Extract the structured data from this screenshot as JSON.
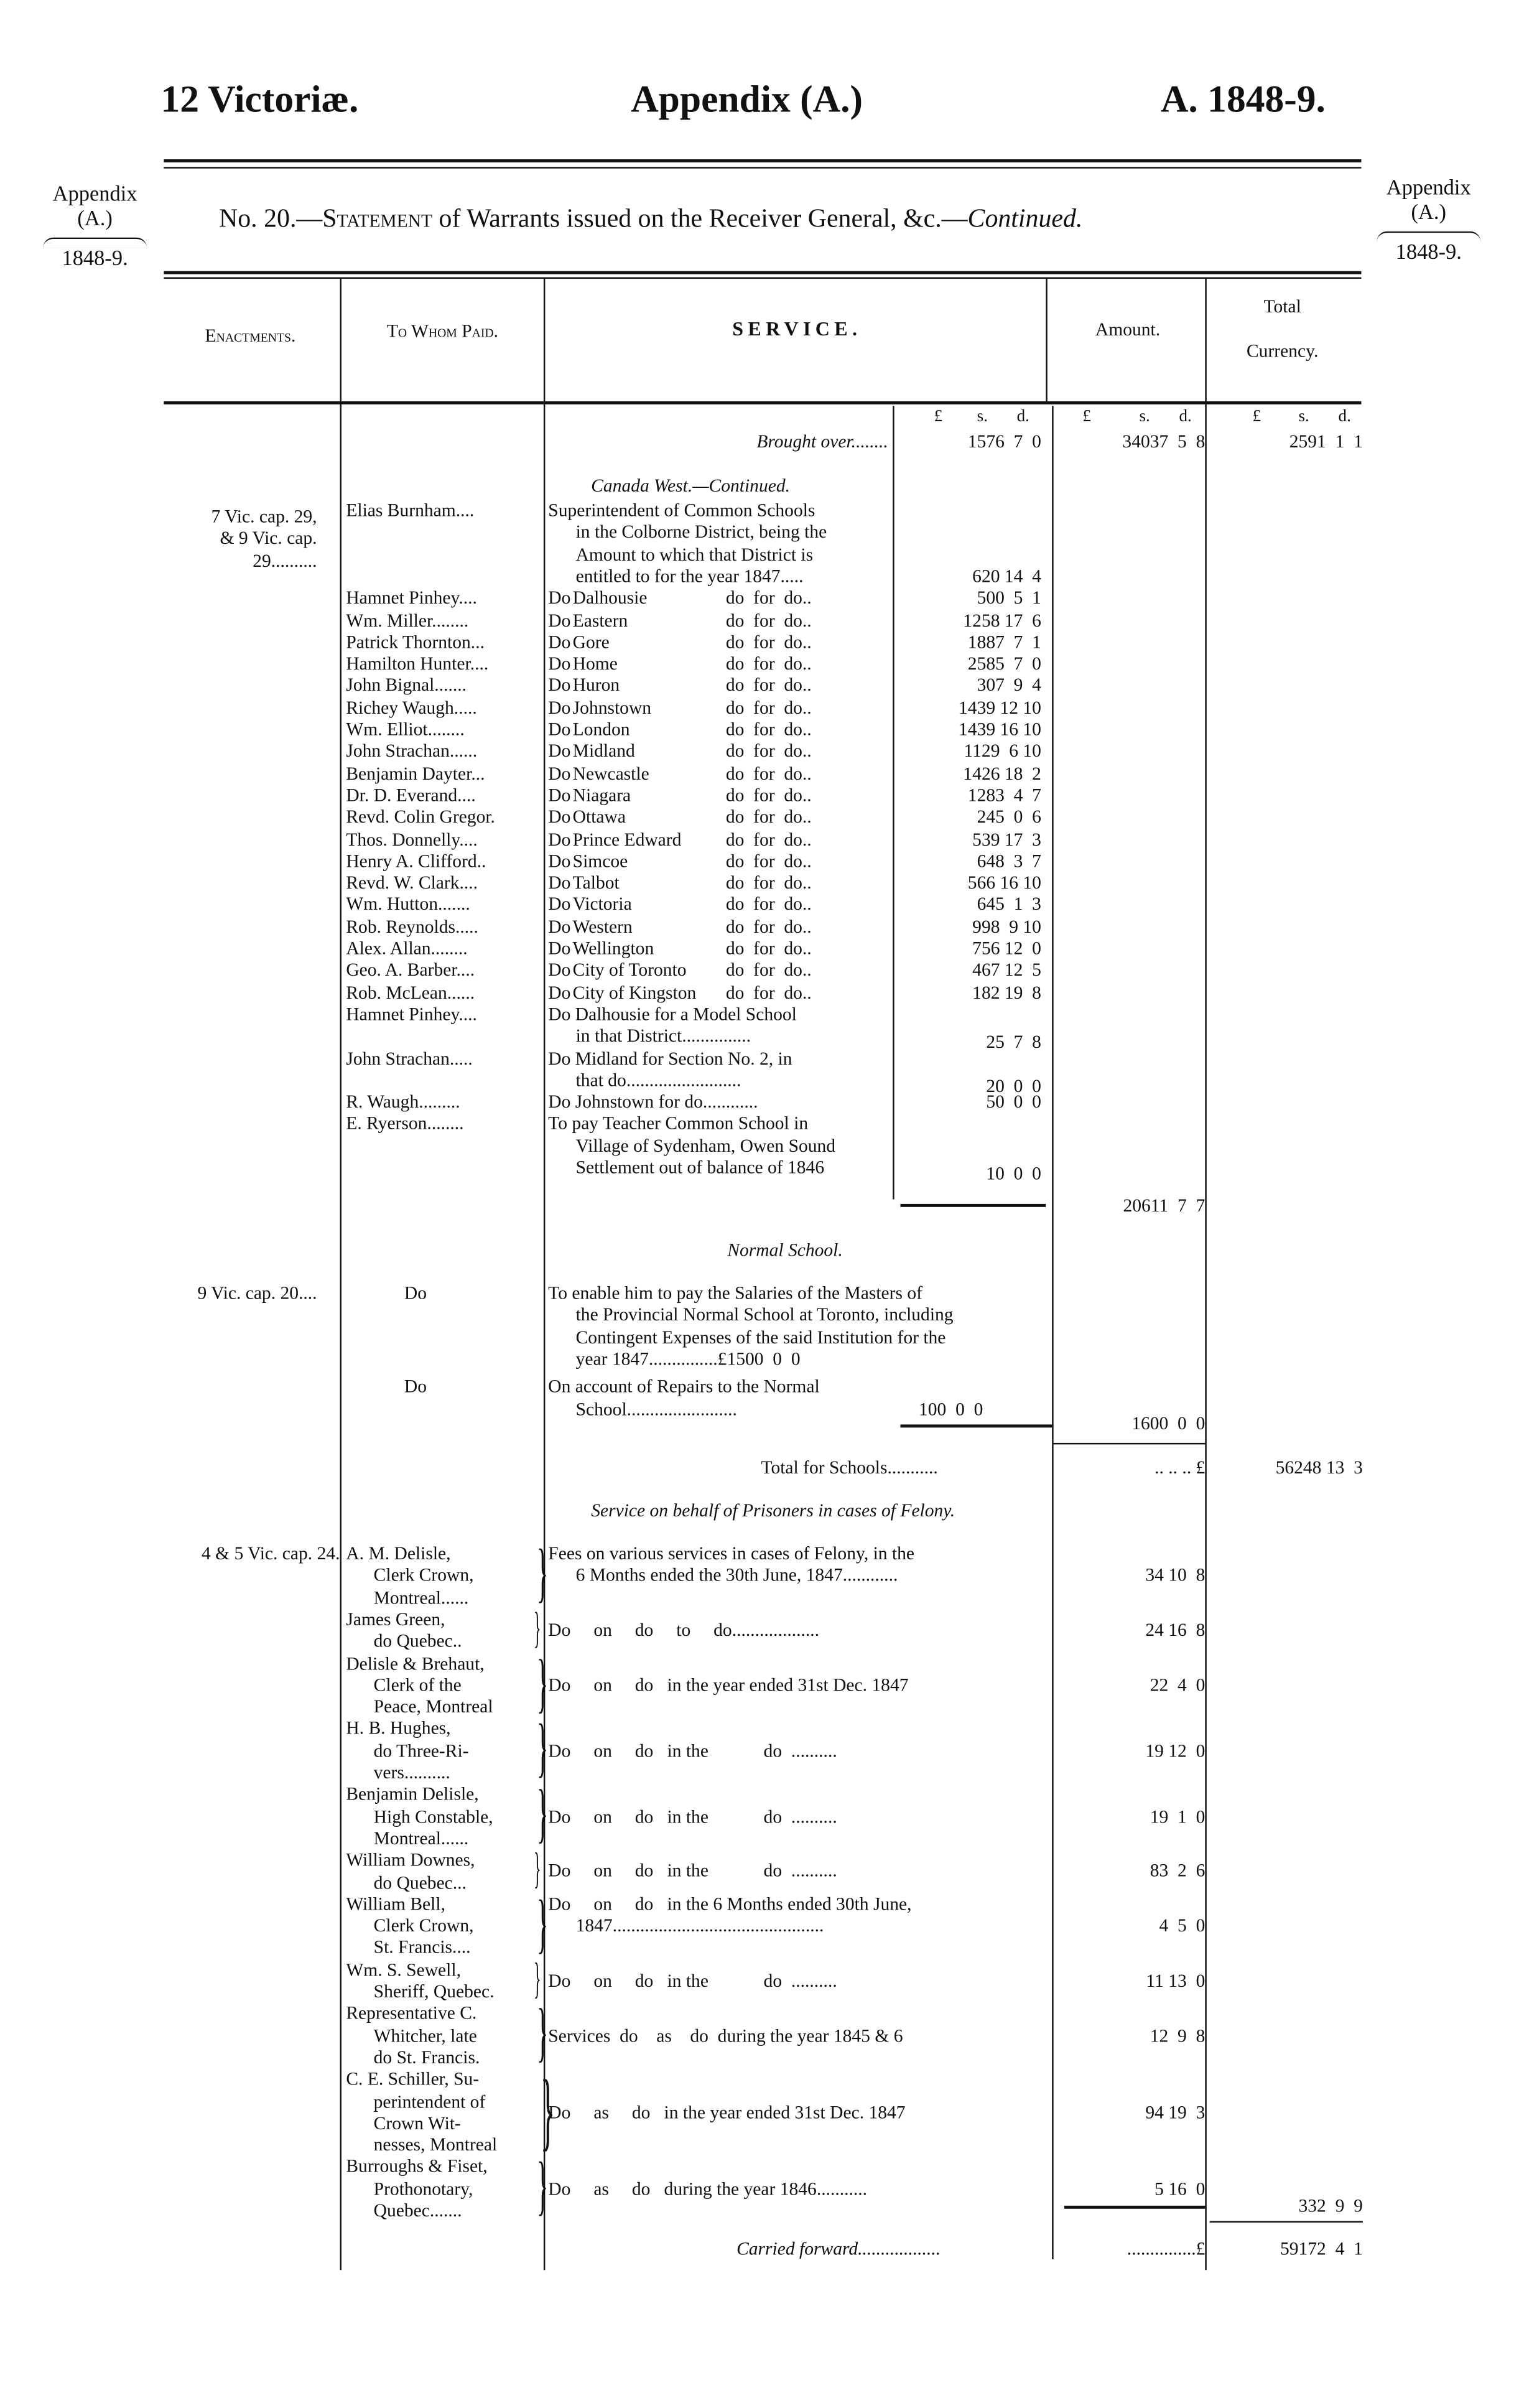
{
  "header": {
    "left": "12 Victoriæ.",
    "center": "Appendix (A.)",
    "right": "A. 1848-9."
  },
  "side": {
    "appendix": "Appendix",
    "a": "(A.)",
    "year": "1848-9."
  },
  "statement": {
    "prefix": "No. 20.—",
    "title": "Statement",
    "rest": " of Warrants issued on the Receiver General, &c.—",
    "continued": "Continued."
  },
  "columns": {
    "enactments": "Enactments.",
    "to_whom": "To Whom Paid.",
    "service": "SERVICE.",
    "amount": "Amount.",
    "total1": "Total",
    "total2": "Currency."
  },
  "lsd": {
    "l": "£",
    "s": "s.",
    "d": "d."
  },
  "brought_over": {
    "label": "Brought over........",
    "sub": "1576  7  0",
    "amount": "34037  5  8",
    "total": "2591  1  1"
  },
  "canada_west": "Canada West.—Continued.",
  "schools": {
    "enactment": [
      "7 Vic. cap. 29,",
      "& 9 Vic. cap.",
      "29.........."
    ],
    "first": {
      "whom": "Elias Burnham....",
      "service": [
        "Superintendent of Common Schools",
        "in the Colborne District, being the",
        "Amount to which that District is",
        "entitled to for the year 1847....."
      ],
      "amount": "620 14  4"
    },
    "rows": [
      {
        "whom": "Hamnet Pinhey....",
        "district": "Dalhousie",
        "amount": "500  5  1"
      },
      {
        "whom": "Wm. Miller........",
        "district": "Eastern",
        "amount": "1258 17  6"
      },
      {
        "whom": "Patrick Thornton...",
        "district": "Gore",
        "amount": "1887  7  1"
      },
      {
        "whom": "Hamilton Hunter....",
        "district": "Home",
        "amount": "2585  7  0"
      },
      {
        "whom": "John Bignal.......",
        "district": "Huron",
        "amount": "307  9  4"
      },
      {
        "whom": "Richey Waugh.....",
        "district": "Johnstown",
        "amount": "1439 12 10"
      },
      {
        "whom": "Wm. Elliot........",
        "district": "London",
        "amount": "1439 16 10"
      },
      {
        "whom": "John Strachan......",
        "district": "Midland",
        "amount": "1129  6 10"
      },
      {
        "whom": "Benjamin Dayter...",
        "district": "Newcastle",
        "amount": "1426 18  2"
      },
      {
        "whom": "Dr. D. Everand....",
        "district": "Niagara",
        "amount": "1283  4  7"
      },
      {
        "whom": "Revd. Colin Gregor.",
        "district": "Ottawa",
        "amount": "245  0  6"
      },
      {
        "whom": "Thos. Donnelly....",
        "district": "Prince Edward",
        "amount": "539 17  3"
      },
      {
        "whom": "Henry A. Clifford..",
        "district": "Simcoe",
        "amount": "648  3  7"
      },
      {
        "whom": "Revd. W. Clark....",
        "district": "Talbot",
        "amount": "566 16 10"
      },
      {
        "whom": "Wm. Hutton.......",
        "district": "Victoria",
        "amount": "645  1  3"
      },
      {
        "whom": "Rob. Reynolds.....",
        "district": "Western",
        "amount": "998  9 10"
      },
      {
        "whom": "Alex. Allan........",
        "district": "Wellington",
        "amount": "756 12  0"
      },
      {
        "whom": "Geo. A. Barber....",
        "district": "City of Toronto",
        "amount": "467 12  5"
      },
      {
        "whom": "Rob. McLean......",
        "district": "City of Kingston",
        "amount": "182 19  8"
      }
    ],
    "do": "Do",
    "do_for_do": "do  for  do..",
    "extra": [
      {
        "whom": "Hamnet Pinhey....",
        "service": [
          "Do  Dalhousie for a Model School",
          "in that District..............."
        ],
        "amount": "25  7  8"
      },
      {
        "whom": "John Strachan.....",
        "service": [
          "Do  Midland for Section No. 2, in",
          "that do........................."
        ],
        "amount": "20  0  0"
      },
      {
        "whom": "R. Waugh.........",
        "service": [
          "Do  Johnstown for do............"
        ],
        "amount": "50  0  0"
      },
      {
        "whom": "E. Ryerson........",
        "service": [
          "To pay Teacher Common School in",
          "Village of Sydenham, Owen Sound",
          "Settlement out of balance of 1846"
        ],
        "amount": "10  0  0"
      }
    ],
    "subtotal": "20611  7  7"
  },
  "normal": {
    "title": "Normal School.",
    "enactment": "9 Vic. cap. 20....",
    "rows": [
      {
        "whom": "Do",
        "service": [
          "To enable him to pay the Salaries of the Masters of",
          "the Provincial Normal School at Toronto, including",
          "Contingent Expenses of the said Institution for the",
          "year 1847...............£1500  0  0"
        ]
      },
      {
        "whom": "Do",
        "service": [
          "On account of Repairs to the Normal",
          "School........................"
        ],
        "amount": "100  0  0"
      }
    ],
    "subtotal": "1600  0  0"
  },
  "total_schools": {
    "label": "Total for Schools...........",
    "dots": ".. .. .. £",
    "total": "56248 13  3"
  },
  "felony": {
    "title": "Service on behalf of Prisoners in cases of Felony.",
    "enactment": "4 & 5 Vic. cap. 24.",
    "rows": [
      {
        "whom": [
          "A. M. Delisle,",
          "Clerk Crown,",
          "Montreal......"
        ],
        "service": [
          "Fees on various services in cases of Felony, in the",
          "6 Months ended the 30th June, 1847............"
        ],
        "amount": "34 10  8"
      },
      {
        "whom": [
          "James Green,",
          "do  Quebec.."
        ],
        "service": [
          "Do     on     do     to     do..................."
        ],
        "amount": "24 16  8"
      },
      {
        "whom": [
          "Delisle & Brehaut,",
          "Clerk  of  the",
          "Peace, Montreal"
        ],
        "service": [
          "Do     on     do   in the year ended 31st Dec. 1847"
        ],
        "amount": "22  4  0"
      },
      {
        "whom": [
          "H. B. Hughes,",
          "do  Three-Ri-",
          "vers.........."
        ],
        "service": [
          "Do     on     do   in the            do  .........."
        ],
        "amount": "19 12  0"
      },
      {
        "whom": [
          "Benjamin Delisle,",
          "High Constable,",
          "Montreal......"
        ],
        "service": [
          "Do     on     do   in the            do  .........."
        ],
        "amount": "19  1  0"
      },
      {
        "whom": [
          "William Downes,",
          "do  Quebec..."
        ],
        "service": [
          "Do     on     do   in the            do  .........."
        ],
        "amount": "83  2  6"
      },
      {
        "whom": [
          "William Bell,",
          "Clerk Crown,",
          "St. Francis...."
        ],
        "service": [
          "Do     on     do   in the 6 Months ended 30th June,",
          "1847.............................................."
        ],
        "amount": "4  5  0"
      },
      {
        "whom": [
          "Wm. S. Sewell,",
          "Sheriff, Quebec."
        ],
        "service": [
          "Do     on     do   in the            do  .........."
        ],
        "amount": "11 13  0"
      },
      {
        "whom": [
          "Representative C.",
          "Whitcher, late",
          "do St. Francis."
        ],
        "service": [
          "Services  do    as    do  during the year 1845 & 6"
        ],
        "amount": "12  9  8"
      },
      {
        "whom": [
          "C. E. Schiller, Su-",
          "perintendent of",
          "Crown   Wit-",
          "nesses, Montreal"
        ],
        "service": [
          "Do     as     do   in the year ended 31st Dec. 1847"
        ],
        "amount": "94 19  3"
      },
      {
        "whom": [
          "Burroughs & Fiset,",
          "Prothonotary,",
          "Quebec......."
        ],
        "service": [
          "Do     as     do   during the year 1846..........."
        ],
        "amount": "5 16  0"
      }
    ],
    "total": "332  9  9"
  },
  "carried_forward": {
    "label": "Carried forward..................",
    "dots": "...............£",
    "total": "59172  4  1"
  }
}
